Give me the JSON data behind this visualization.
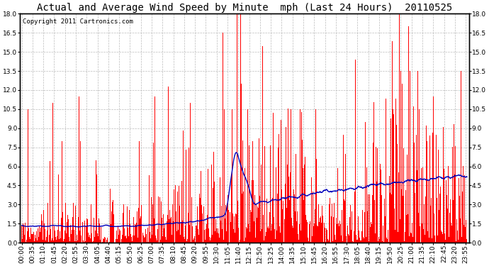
{
  "title": "Actual and Average Wind Speed by Minute  mph (Last 24 Hours)  20110525",
  "copyright": "Copyright 2011 Cartronics.com",
  "ylim": [
    0,
    18.0
  ],
  "yticks": [
    0.0,
    1.5,
    3.0,
    4.5,
    6.0,
    7.5,
    9.0,
    10.5,
    12.0,
    13.5,
    15.0,
    16.5,
    18.0
  ],
  "bar_color": "#FF0000",
  "line_color": "#0000BB",
  "bg_color": "#FFFFFF",
  "grid_color": "#BBBBBB",
  "title_fontsize": 10,
  "copyright_fontsize": 6.5,
  "tick_fontsize": 6.5
}
